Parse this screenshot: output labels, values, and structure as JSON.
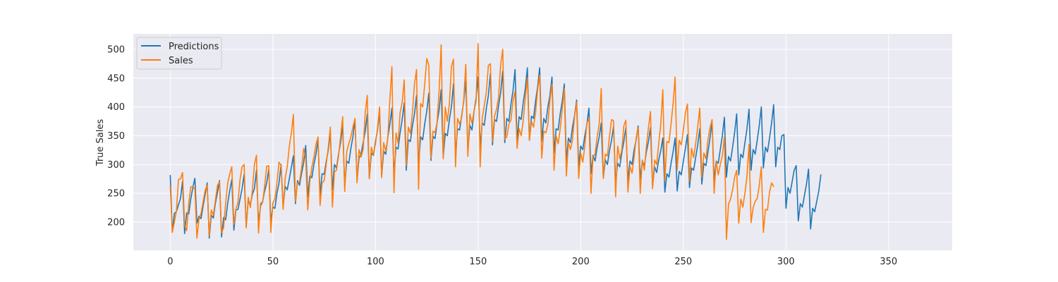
{
  "chart_data": {
    "type": "line",
    "ylabel": "True Sales",
    "xlabel": "",
    "xlim": [
      -18,
      381
    ],
    "ylim": [
      151,
      527
    ],
    "xticks": [
      0,
      50,
      100,
      150,
      200,
      250,
      300,
      350
    ],
    "yticks": [
      200,
      250,
      300,
      350,
      400,
      450,
      500
    ],
    "grid": true,
    "legend_position": "top-left",
    "series": [
      {
        "name": "Predictions",
        "color": "#1f77b4",
        "values": [
          281,
          183,
          215,
          218,
          230,
          241,
          271,
          180,
          216,
          214,
          240,
          260,
          276,
          198,
          210,
          206,
          228,
          248,
          268,
          172,
          212,
          207,
          233,
          251,
          272,
          174,
          208,
          204,
          233,
          255,
          274,
          186,
          221,
          222,
          240,
          258,
          283,
          192,
          238,
          230,
          248,
          258,
          290,
          198,
          228,
          236,
          254,
          268,
          292,
          202,
          226,
          224,
          250,
          268,
          300,
          226,
          262,
          256,
          275,
          295,
          315,
          232,
          272,
          264,
          285,
          303,
          333,
          243,
          280,
          277,
          300,
          318,
          342,
          248,
          284,
          283,
          305,
          325,
          356,
          256,
          300,
          294,
          318,
          338,
          367,
          262,
          306,
          302,
          328,
          348,
          378,
          272,
          312,
          318,
          338,
          358,
          388,
          276,
          320,
          316,
          340,
          360,
          390,
          280,
          323,
          318,
          347,
          370,
          398,
          283,
          330,
          327,
          355,
          378,
          407,
          290,
          343,
          340,
          367,
          388,
          420,
          300,
          348,
          343,
          371,
          393,
          424,
          307,
          349,
          345,
          372,
          395,
          430,
          312,
          354,
          350,
          378,
          400,
          440,
          320,
          362,
          360,
          385,
          410,
          445,
          324,
          368,
          360,
          392,
          415,
          452,
          330,
          372,
          368,
          397,
          420,
          458,
          334,
          378,
          375,
          403,
          425,
          462,
          338,
          380,
          375,
          405,
          428,
          465,
          340,
          383,
          378,
          408,
          432,
          468,
          342,
          384,
          380,
          410,
          435,
          468,
          340,
          380,
          372,
          400,
          420,
          452,
          320,
          362,
          360,
          388,
          410,
          440,
          306,
          346,
          338,
          365,
          385,
          412,
          296,
          332,
          326,
          350,
          370,
          398,
          284,
          316,
          306,
          330,
          348,
          372,
          276,
          308,
          300,
          324,
          342,
          366,
          270,
          302,
          296,
          320,
          340,
          364,
          272,
          306,
          300,
          325,
          343,
          367,
          274,
          306,
          298,
          322,
          340,
          364,
          262,
          296,
          286,
          308,
          324,
          346,
          252,
          284,
          278,
          302,
          322,
          346,
          254,
          288,
          282,
          306,
          328,
          352,
          260,
          294,
          290,
          312,
          334,
          362,
          266,
          302,
          298,
          322,
          346,
          374,
          272,
          306,
          302,
          326,
          350,
          382,
          278,
          314,
          306,
          330,
          356,
          388,
          282,
          318,
          312,
          338,
          362,
          396,
          290,
          326,
          318,
          342,
          368,
          400,
          294,
          330,
          322,
          346,
          372,
          404,
          296,
          330,
          326,
          350,
          352,
          224,
          260,
          250,
          270,
          290,
          298,
          202,
          232,
          226,
          246,
          266,
          292,
          188,
          224,
          218,
          236,
          254,
          282
        ]
      },
      {
        "name": "Sales",
        "color": "#ff7f0e",
        "values": [
          263,
          182,
          200,
          219,
          274,
          275,
          286,
          195,
          185,
          232,
          261,
          262,
          257,
          172,
          205,
          215,
          235,
          255,
          264,
          176,
          221,
          212,
          238,
          264,
          270,
          181,
          190,
          233,
          268,
          284,
          296,
          196,
          223,
          234,
          274,
          296,
          300,
          190,
          243,
          225,
          254,
          300,
          316,
          181,
          233,
          234,
          263,
          297,
          298,
          182,
          233,
          241,
          268,
          304,
          298,
          222,
          276,
          296,
          331,
          355,
          387,
          236,
          268,
          270,
          294,
          328,
          310,
          221,
          270,
          296,
          313,
          335,
          348,
          229,
          268,
          272,
          300,
          330,
          365,
          226,
          287,
          290,
          315,
          348,
          383,
          253,
          323,
          336,
          348,
          365,
          380,
          268,
          326,
          313,
          327,
          390,
          420,
          275,
          330,
          317,
          336,
          363,
          400,
          277,
          338,
          323,
          346,
          412,
          470,
          251,
          355,
          337,
          390,
          408,
          447,
          298,
          365,
          354,
          390,
          440,
          465,
          257,
          406,
          400,
          440,
          484,
          472,
          311,
          358,
          355,
          373,
          428,
          508,
          310,
          400,
          375,
          405,
          470,
          483,
          296,
          380,
          370,
          382,
          412,
          474,
          314,
          388,
          372,
          392,
          410,
          510,
          296,
          380,
          402,
          425,
          472,
          475,
          340,
          384,
          396,
          418,
          474,
          500,
          344,
          348,
          370,
          377,
          411,
          427,
          328,
          362,
          350,
          377,
          416,
          450,
          342,
          375,
          365,
          390,
          430,
          455,
          311,
          358,
          355,
          370,
          412,
          440,
          290,
          350,
          336,
          362,
          396,
          432,
          280,
          338,
          326,
          343,
          383,
          408,
          276,
          320,
          304,
          332,
          372,
          380,
          250,
          313,
          318,
          348,
          370,
          432,
          276,
          318,
          315,
          348,
          378,
          376,
          244,
          332,
          310,
          325,
          367,
          377,
          252,
          297,
          285,
          312,
          346,
          364,
          250,
          308,
          290,
          332,
          364,
          392,
          258,
          308,
          300,
          336,
          370,
          430,
          272,
          340,
          338,
          370,
          406,
          452,
          290,
          342,
          334,
          360,
          390,
          405,
          271,
          328,
          312,
          336,
          365,
          398,
          278,
          320,
          310,
          343,
          364,
          378,
          250,
          306,
          282,
          300,
          316,
          348,
          170,
          231,
          240,
          256,
          278,
          290,
          198,
          240,
          226,
          250,
          280,
          335,
          199,
          225,
          236,
          241,
          264,
          296,
          182,
          222,
          221,
          252,
          268,
          262
        ]
      }
    ]
  }
}
